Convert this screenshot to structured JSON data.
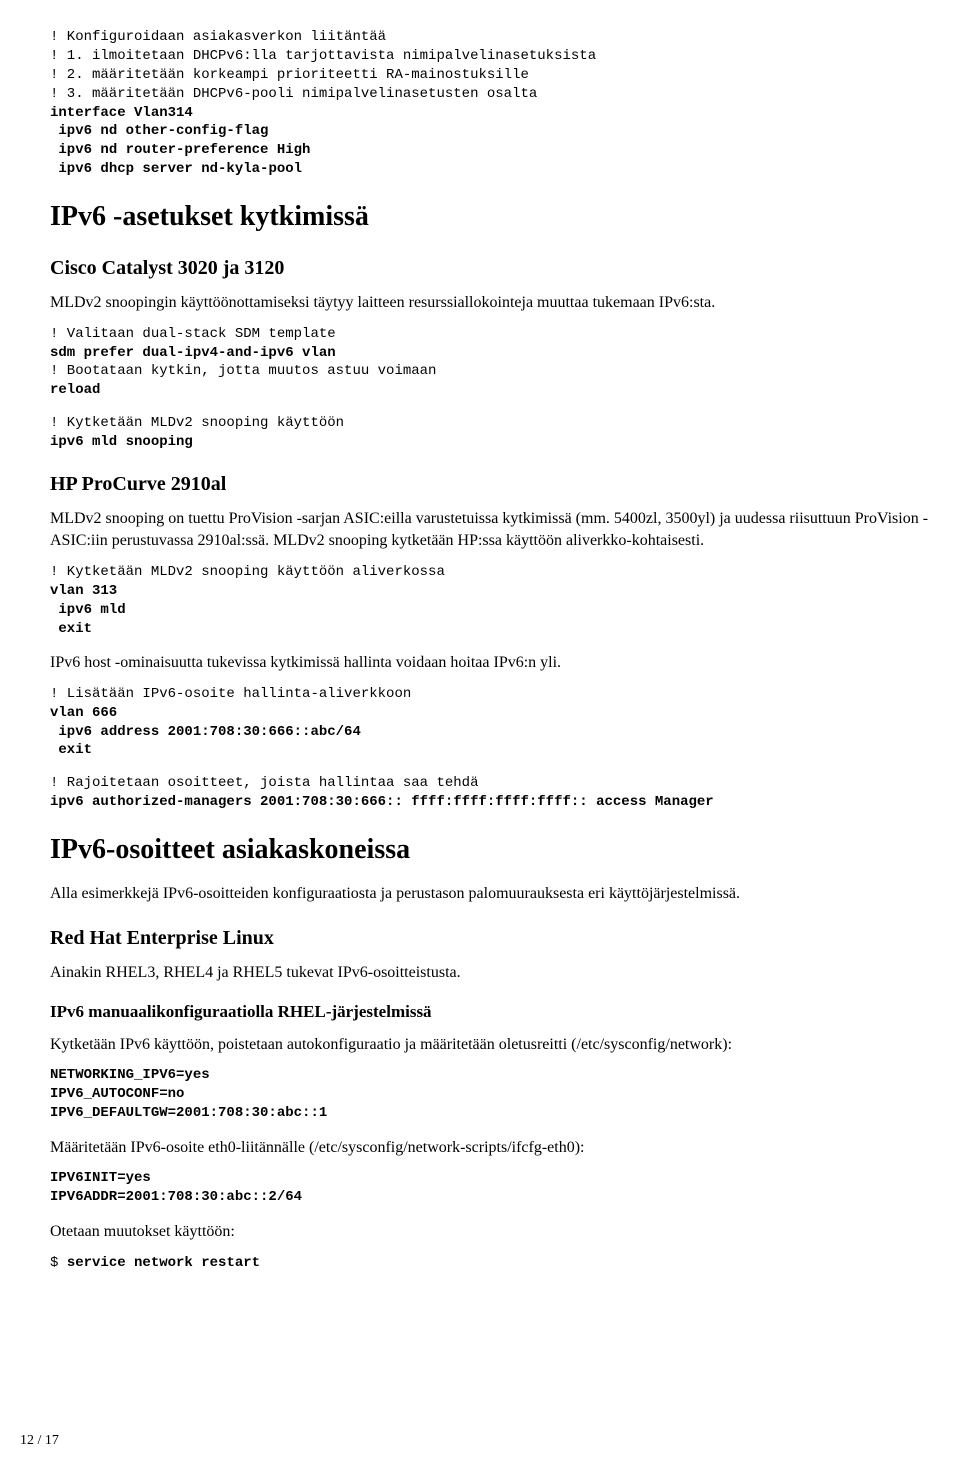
{
  "code1": {
    "l1": "! Konfiguroidaan asiakasverkon liitäntää",
    "l2": "! 1. ilmoitetaan DHCPv6:lla tarjottavista nimipalvelinasetuksista",
    "l3": "! 2. määritetään korkeampi prioriteetti RA-mainostuksille",
    "l4": "! 3. määritetään DHCPv6-pooli nimipalvelinasetusten osalta",
    "b1": "interface Vlan314",
    "b2": " ipv6 nd other-config-flag",
    "b3": " ipv6 nd router-preference High",
    "b4": " ipv6 dhcp server nd-kyla-pool"
  },
  "h1a": "IPv6 -asetukset kytkimissä",
  "h2a": "Cisco Catalyst 3020 ja 3120",
  "p1": "MLDv2 snoopingin käyttöönottamiseksi täytyy laitteen resurssiallokointeja muuttaa tukemaan IPv6:sta.",
  "code2": {
    "l1": "! Valitaan dual-stack SDM template",
    "b1": "sdm prefer dual-ipv4-and-ipv6 vlan",
    "l2": "! Bootataan kytkin, jotta muutos astuu voimaan",
    "b2": "reload"
  },
  "code3": {
    "l1": "! Kytketään MLDv2 snooping käyttöön",
    "b1": "ipv6 mld snooping"
  },
  "h2b": "HP ProCurve 2910al",
  "p2": "MLDv2 snooping on tuettu ProVision -sarjan ASIC:eilla varustetuissa kytkimissä (mm. 5400zl, 3500yl) ja uudessa riisuttuun ProVision -ASIC:iin perustuvassa 2910al:ssä. MLDv2 snooping kytketään HP:ssa käyttöön aliverkko-kohtaisesti.",
  "code4": {
    "l1": "! Kytketään MLDv2 snooping käyttöön aliverkossa",
    "b1": "vlan 313",
    "b2": " ipv6 mld",
    "b3": " exit"
  },
  "p3": "IPv6 host -ominaisuutta tukevissa kytkimissä hallinta voidaan hoitaa IPv6:n yli.",
  "code5": {
    "l1": "! Lisätään IPv6-osoite hallinta-aliverkkoon",
    "b1": "vlan 666",
    "b2": " ipv6 address 2001:708:30:666::abc/64",
    "b3": " exit"
  },
  "code6": {
    "l1": "! Rajoitetaan osoitteet, joista hallintaa saa tehdä",
    "b1": "ipv6 authorized-managers 2001:708:30:666:: ffff:ffff:ffff:ffff:: access Manager"
  },
  "h1b": "IPv6-osoitteet asiakaskoneissa",
  "p4": "Alla esimerkkejä IPv6-osoitteiden konfiguraatiosta ja perustason palomuurauksesta eri käyttöjärjestelmissä.",
  "h2c": "Red Hat Enterprise Linux",
  "p5": "Ainakin RHEL3, RHEL4 ja RHEL5 tukevat IPv6-osoitteistusta.",
  "h3a": "IPv6 manuaalikonfiguraatiolla RHEL-järjestelmissä",
  "p6": "Kytketään IPv6 käyttöön, poistetaan autokonfiguraatio ja määritetään oletusreitti (/etc/sysconfig/network):",
  "code7": {
    "b1": "NETWORKING_IPV6=yes",
    "b2": "IPV6_AUTOCONF=no",
    "b3": "IPV6_DEFAULTGW=2001:708:30:abc::1"
  },
  "p7": "Määritetään IPv6-osoite eth0-liitännälle (/etc/sysconfig/network-scripts/ifcfg-eth0):",
  "code8": {
    "b1": "IPV6INIT=yes",
    "b2": "IPV6ADDR=2001:708:30:abc::2/64"
  },
  "p8": "Otetaan muutokset käyttöön:",
  "code9": {
    "l1": "$ ",
    "b1": "service network restart"
  },
  "pagenum": "12 / 17"
}
